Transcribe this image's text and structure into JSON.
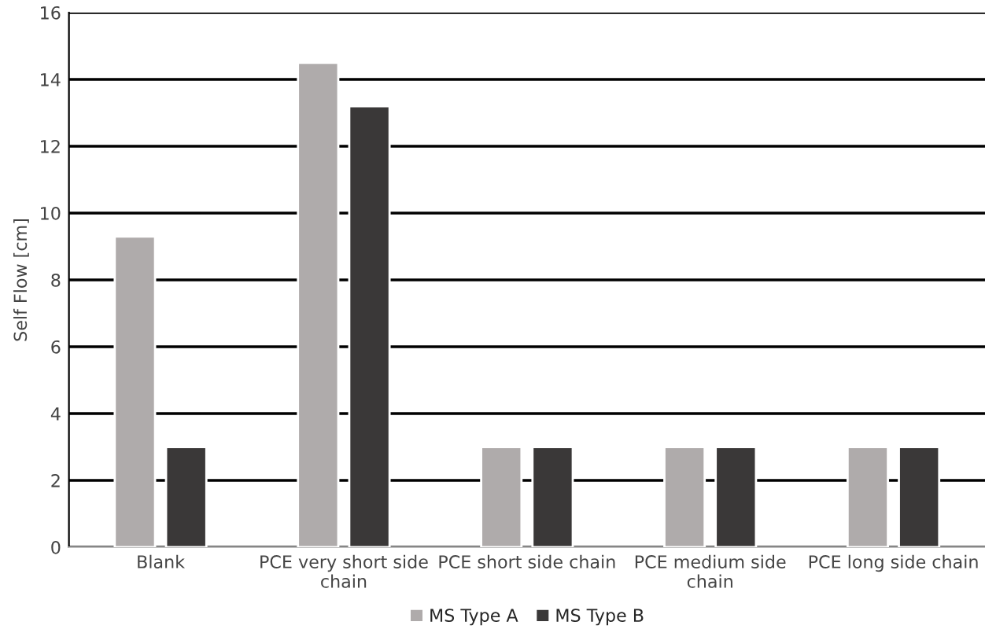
{
  "chart_data": {
    "type": "bar",
    "ylabel": "Self Flow [cm]",
    "categories": [
      "Blank",
      "PCE very short side\nchain",
      "PCE short side chain",
      "PCE medium side\nchain",
      "PCE long side chain"
    ],
    "series": [
      {
        "name": "MS Type A",
        "color": "#afabab",
        "values": [
          9.3,
          14.5,
          3,
          3,
          3
        ]
      },
      {
        "name": "MS Type B",
        "color": "#3a3838",
        "values": [
          3,
          13.2,
          3,
          3,
          3
        ]
      }
    ],
    "ylim": [
      0,
      16
    ],
    "yticks": [
      0,
      2,
      4,
      6,
      8,
      10,
      12,
      14,
      16
    ],
    "grid": "y",
    "legend": "bottom"
  }
}
